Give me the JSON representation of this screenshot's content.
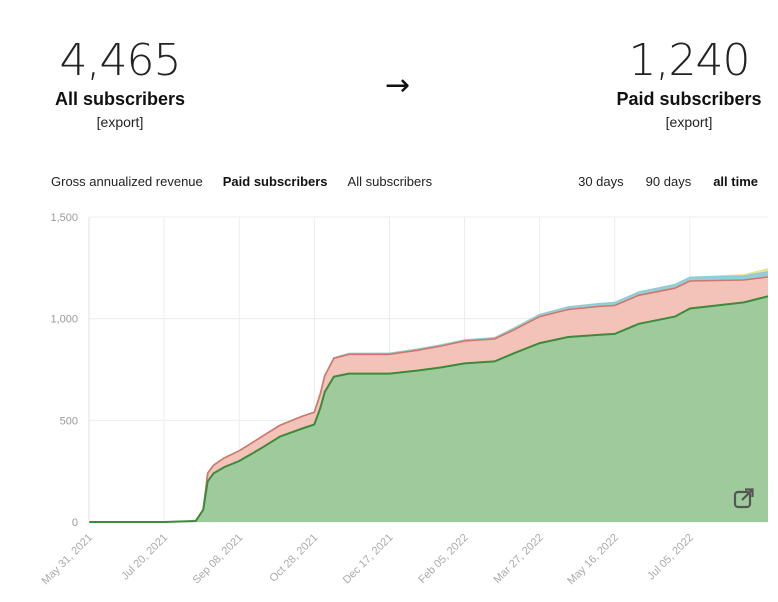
{
  "stats": {
    "all": {
      "number": "4,465",
      "label": "All subscribers",
      "export": "[export]"
    },
    "arrow": "→",
    "paid": {
      "number": "1,240",
      "label": "Paid subscribers",
      "export": "[export]"
    }
  },
  "metric_tabs": [
    {
      "label": "Gross annualized revenue",
      "active": false
    },
    {
      "label": "Paid subscribers",
      "active": true
    },
    {
      "label": "All subscribers",
      "active": false
    }
  ],
  "range_tabs": [
    {
      "label": "30 days",
      "active": false
    },
    {
      "label": "90 days",
      "active": false
    },
    {
      "label": "all time",
      "active": true
    }
  ],
  "share_icon": "external-link-icon",
  "colors": {
    "green_fill": "#9fcb9c",
    "green_line": "#3c8a3a",
    "red_fill": "#f2c0b5",
    "red_line": "#d3766a",
    "blue_line": "#8ecbd8",
    "yellow_line": "#e9e38a"
  },
  "chart_data": {
    "type": "area",
    "stacked": true,
    "ylim": [
      0,
      1500
    ],
    "yticks": [
      0,
      500,
      1000,
      1500
    ],
    "ytick_labels": [
      "0",
      "500",
      "1,000",
      "1,500"
    ],
    "xlim": [
      "2021-05-31",
      "2022-08-26"
    ],
    "xticks": [
      "2021-05-31",
      "2021-07-20",
      "2021-09-08",
      "2021-10-28",
      "2021-12-17",
      "2022-02-05",
      "2022-03-27",
      "2022-05-16",
      "2022-07-05"
    ],
    "xtick_labels": [
      "May 31, 2021",
      "Jul 20, 2021",
      "Sep 08, 2021",
      "Oct 28, 2021",
      "Dec 17, 2021",
      "Feb 05, 2022",
      "Mar 27, 2022",
      "May 16, 2022",
      "Jul 05, 2022"
    ],
    "grid": true,
    "x": [
      "2021-05-31",
      "2021-07-20",
      "2021-08-10",
      "2021-08-15",
      "2021-08-18",
      "2021-08-22",
      "2021-08-29",
      "2021-09-08",
      "2021-09-22",
      "2021-10-05",
      "2021-10-20",
      "2021-10-28",
      "2021-11-01",
      "2021-11-04",
      "2021-11-10",
      "2021-11-20",
      "2021-12-17",
      "2022-01-05",
      "2022-01-20",
      "2022-02-05",
      "2022-02-25",
      "2022-03-10",
      "2022-03-27",
      "2022-04-15",
      "2022-05-05",
      "2022-05-16",
      "2022-06-01",
      "2022-06-25",
      "2022-07-05",
      "2022-08-10",
      "2022-08-26"
    ],
    "series": [
      {
        "values": [
          0,
          0,
          5,
          60,
          200,
          240,
          270,
          300,
          360,
          420,
          460,
          480,
          560,
          640,
          715,
          730,
          730,
          745,
          760,
          780,
          790,
          830,
          880,
          910,
          920,
          925,
          975,
          1010,
          1050,
          1080,
          1110
        ]
      },
      {
        "values": [
          0,
          0,
          0,
          0,
          40,
          40,
          45,
          50,
          55,
          55,
          60,
          60,
          70,
          80,
          90,
          95,
          95,
          100,
          105,
          110,
          110,
          115,
          130,
          135,
          140,
          140,
          140,
          140,
          135,
          110,
          95
        ]
      },
      {
        "values": [
          0,
          0,
          0,
          0,
          0,
          0,
          0,
          0,
          0,
          0,
          0,
          0,
          0,
          0,
          2,
          3,
          4,
          5,
          5,
          5,
          6,
          8,
          10,
          12,
          13,
          14,
          15,
          17,
          18,
          20,
          25
        ]
      },
      {
        "values": [
          0,
          0,
          0,
          0,
          0,
          0,
          0,
          0,
          0,
          0,
          0,
          0,
          0,
          0,
          0,
          0,
          0,
          0,
          0,
          0,
          0,
          0,
          0,
          0,
          0,
          0,
          0,
          0,
          0,
          5,
          15
        ]
      }
    ]
  }
}
